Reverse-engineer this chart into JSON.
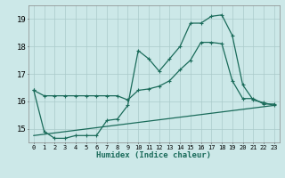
{
  "xlabel": "Humidex (Indice chaleur)",
  "bg_color": "#cce8e8",
  "grid_color": "#aacaca",
  "line_color": "#1a6b5a",
  "xlim": [
    -0.5,
    23.5
  ],
  "ylim": [
    14.5,
    19.5
  ],
  "yticks": [
    15,
    16,
    17,
    18,
    19
  ],
  "xticks": [
    0,
    1,
    2,
    3,
    4,
    5,
    6,
    7,
    8,
    9,
    10,
    11,
    12,
    13,
    14,
    15,
    16,
    17,
    18,
    19,
    20,
    21,
    22,
    23
  ],
  "series1_x": [
    0,
    1,
    2,
    3,
    4,
    5,
    6,
    7,
    8,
    9,
    10,
    11,
    12,
    13,
    14,
    15,
    16,
    17,
    18,
    19,
    20,
    21,
    22,
    23
  ],
  "series1_y": [
    16.4,
    16.2,
    16.2,
    16.2,
    16.2,
    16.2,
    16.2,
    16.2,
    16.2,
    16.05,
    16.4,
    16.45,
    16.55,
    16.75,
    17.15,
    17.5,
    18.15,
    18.15,
    18.1,
    16.75,
    16.1,
    16.1,
    15.9,
    15.9
  ],
  "series2_x": [
    0,
    1,
    2,
    3,
    4,
    5,
    6,
    7,
    8,
    9,
    10,
    11,
    12,
    13,
    14,
    15,
    16,
    17,
    18,
    19,
    20,
    21,
    22,
    23
  ],
  "series2_y": [
    16.4,
    14.9,
    14.65,
    14.65,
    14.75,
    14.75,
    14.75,
    15.3,
    15.35,
    15.85,
    17.85,
    17.55,
    17.1,
    17.55,
    18.0,
    18.85,
    18.85,
    19.1,
    19.15,
    18.4,
    16.6,
    16.05,
    15.95,
    15.85
  ],
  "series3_x": [
    0,
    23
  ],
  "series3_y": [
    14.75,
    15.85
  ],
  "linewidth": 0.9,
  "marker_size": 3.5
}
